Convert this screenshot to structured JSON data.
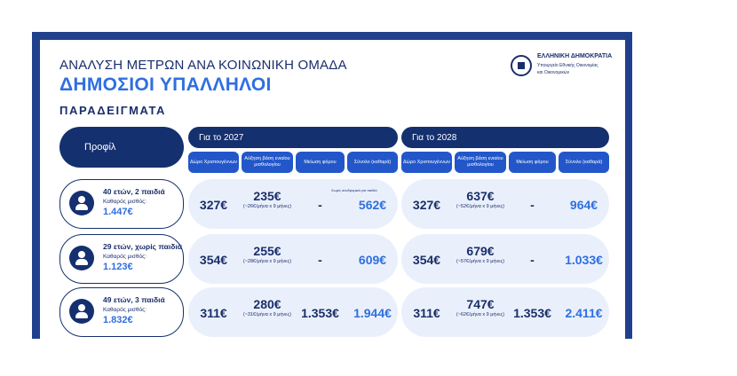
{
  "header": {
    "line1": "ΑΝΑΛΥΣΗ ΜΕΤΡΩΝ ΑΝΑ ΚΟΙΝΩΝΙΚΗ ΟΜΑΔΑ",
    "line2": "ΔΗΜΟΣΙΟΙ ΥΠΑΛΛΗΛΟΙ",
    "line3": "ΠΑΡΑΔΕΙΓΜΑΤΑ"
  },
  "logo": {
    "l1": "ΕΛΛΗΝΙΚΗ ΔΗΜΟΚΡΑΤΙΑ",
    "l2": "Υπουργείο Εθνικής Οικονομίας",
    "l3": "και Οικονομικών"
  },
  "table": {
    "profile_header": "Προφίλ",
    "year1": "Για το 2027",
    "year2": "Για το 2028",
    "subheaders": [
      "Δώρο Χριστουγέννων",
      "Αύξηση βάση ενιαίου μισθολογίου",
      "Μείωση φόρου",
      "Σύνολο (καθαρά)"
    ],
    "note": "Χωρίς αναδρομικά για παιδιά",
    "rows": [
      {
        "name": "40 ετών, 2 παιδιά",
        "salary_label": "Καθαρός μισθός:",
        "salary": "1.447€",
        "y27": {
          "gift": "327€",
          "raise": "235€",
          "raise_note": "(~26€/μήνα x 9 μήνες)",
          "tax": "-",
          "total": "562€"
        },
        "y28": {
          "gift": "327€",
          "raise": "637€",
          "raise_note": "(~52€/μήνα x 9 μήνες)",
          "tax": "-",
          "total": "964€"
        }
      },
      {
        "name": "29 ετών, χωρίς παιδιά",
        "salary_label": "Καθαρός μισθός:",
        "salary": "1.123€",
        "y27": {
          "gift": "354€",
          "raise": "255€",
          "raise_note": "(~28€/μήνα x 9 μήνες)",
          "tax": "-",
          "total": "609€"
        },
        "y28": {
          "gift": "354€",
          "raise": "679€",
          "raise_note": "(~57€/μήνα x 9 μήνες)",
          "tax": "-",
          "total": "1.033€"
        }
      },
      {
        "name": "49 ετών, 3 παιδιά",
        "salary_label": "Καθαρός μισθός:",
        "salary": "1.832€",
        "y27": {
          "gift": "311€",
          "raise": "280€",
          "raise_note": "(~31€/μήνα x 9 μήνες)",
          "tax": "1.353€",
          "total": "1.944€"
        },
        "y28": {
          "gift": "311€",
          "raise": "747€",
          "raise_note": "(~62€/μήνα x 9 μήνες)",
          "tax": "1.353€",
          "total": "2.411€"
        }
      }
    ]
  },
  "colors": {
    "navy": "#15306f",
    "blue": "#2357c9",
    "accent": "#2f6fe0",
    "rowbg": "#eaf0fb",
    "frame": "#21408c"
  }
}
